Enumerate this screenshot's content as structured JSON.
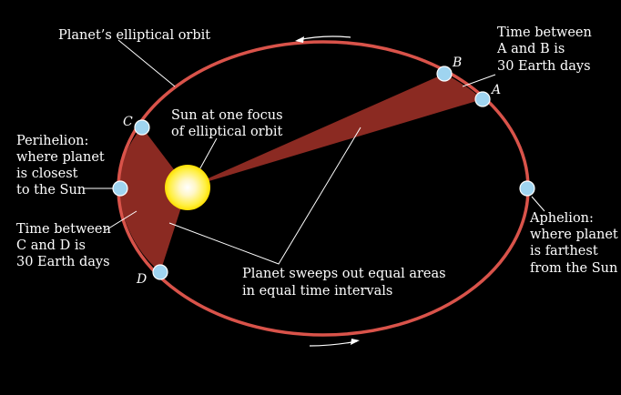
{
  "colors": {
    "background": "#000000",
    "orbit": "#d9534a",
    "swept_area": "#8b2a22",
    "planet": "#9fd4f0",
    "sun_core": "#fff7c8",
    "sun_edge": "#ffe600",
    "leader_line": "#ffffff"
  },
  "labels": {
    "orbit": "Planet’s elliptical orbit",
    "time_ab": [
      "Time between",
      "A and B is",
      "30 Earth days"
    ],
    "sun": [
      "Sun at one focus",
      "of elliptical orbit"
    ],
    "perihelion": [
      "Perihelion:",
      "where planet",
      "is closest",
      "to the Sun"
    ],
    "time_cd": [
      "Time between",
      "C and D is",
      "30 Earth days"
    ],
    "aphelion": [
      "Aphelion:",
      "where planet",
      "is farthest",
      "from the Sun"
    ],
    "equal_areas": [
      "Planet sweeps out equal areas",
      "in equal time intervals"
    ]
  },
  "points": {
    "a": "A",
    "b": "B",
    "c": "C",
    "d": "D"
  },
  "icons": {
    "top_arrow": "arrow-left-icon",
    "bottom_arrow": "arrow-right-icon"
  }
}
